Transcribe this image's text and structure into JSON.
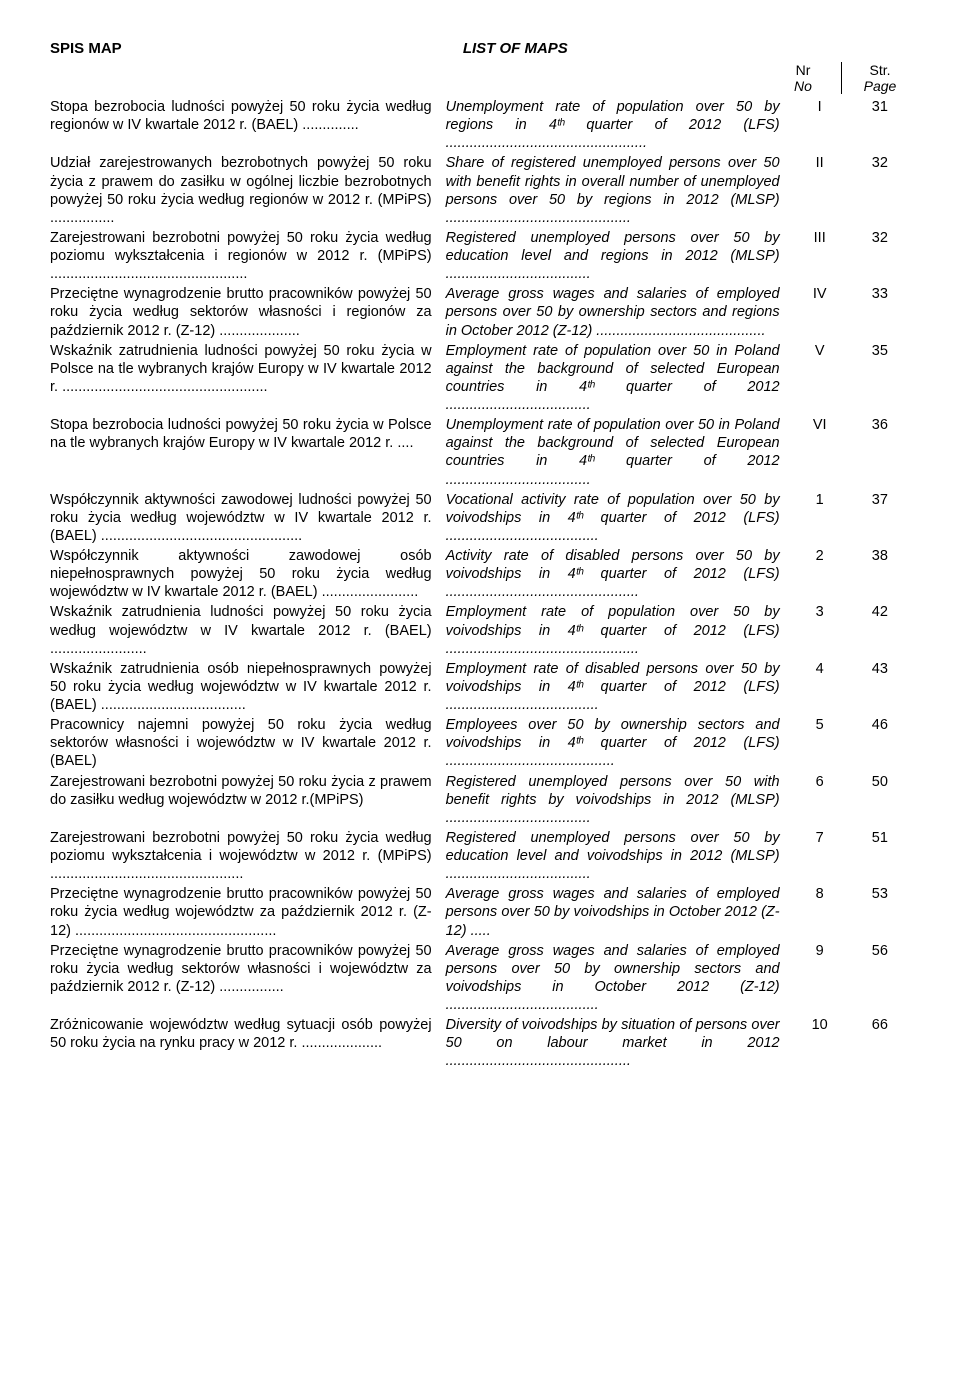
{
  "header": {
    "left": "SPIS MAP",
    "right": "LIST OF MAPS",
    "col_nr": "Nr",
    "col_no": "No",
    "col_str": "Str.",
    "col_page": "Page"
  },
  "entries": [
    {
      "pl": "Stopa bezrobocia ludności powyżej 50 roku życia według regionów w IV kwartale 2012 r. (BAEL) ..............",
      "en": "Unemployment rate of population over 50 by regions in 4ᵗʰ quarter of 2012 (LFS) ..................................................",
      "nr": "I",
      "page": "31"
    },
    {
      "pl": "Udział zarejestrowanych bezrobotnych powyżej 50 roku życia z prawem do zasiłku w ogólnej liczbie bezrobotnych powyżej 50 roku życia według regionów w 2012 r. (MPiPS) ................",
      "en": "Share of registered unemployed persons over 50 with benefit rights in overall number of unemployed persons over 50 by regions in 2012 (MLSP) ..............................................",
      "nr": "II",
      "page": "32"
    },
    {
      "pl": "Zarejestrowani bezrobotni powyżej 50 roku życia według poziomu wykształcenia i regionów w 2012 r. (MPiPS) .................................................",
      "en": "Registered unemployed persons over 50 by education level and regions in 2012 (MLSP) ....................................",
      "nr": "III",
      "page": "32"
    },
    {
      "pl": "Przeciętne wynagrodzenie brutto pracowników powyżej 50 roku życia według sektorów własności i regionów za październik 2012 r. (Z-12) ....................",
      "en": "Average gross wages and salaries of employed persons over 50 by ownership sectors and regions in October 2012 (Z-12) ..........................................",
      "nr": "IV",
      "page": "33"
    },
    {
      "pl": "Wskaźnik zatrudnienia ludności powyżej 50 roku życia w Polsce na tle wybranych krajów Europy w IV kwartale 2012 r. ...................................................",
      "en": "Employment rate of population over 50 in Poland against the background of selected European countries in 4ᵗʰ quarter of 2012 ....................................",
      "nr": "V",
      "page": "35"
    },
    {
      "pl": "Stopa bezrobocia ludności powyżej 50 roku życia w Polsce na tle wybranych krajów Europy w IV kwartale 2012 r. ....",
      "en": "Unemployment rate of population over 50 in Poland against the background of selected European countries in 4ᵗʰ quarter of 2012 ....................................",
      "nr": "VI",
      "page": "36"
    },
    {
      "pl": "Współczynnik aktywności zawodowej ludności powyżej 50 roku życia według województw w IV kwartale 2012 r. (BAEL) ..................................................",
      "en": "Vocational activity rate of population over 50 by voivodships in 4ᵗʰ quarter of 2012 (LFS) ......................................",
      "nr": "1",
      "page": "37"
    },
    {
      "pl": "Współczynnik aktywności zawodowej osób niepełnosprawnych powyżej 50 roku życia według województw w IV kwartale 2012 r. (BAEL) ........................",
      "en": "Activity rate of disabled persons over 50 by voivodships in 4ᵗʰ quarter of 2012 (LFS) ................................................",
      "nr": "2",
      "page": "38"
    },
    {
      "pl": "Wskaźnik zatrudnienia ludności powyżej 50 roku życia według województw w IV kwartale 2012 r. (BAEL) ........................",
      "en": "Employment rate of population over 50 by voivodships in 4ᵗʰ quarter of 2012 (LFS) ................................................",
      "nr": "3",
      "page": "42"
    },
    {
      "pl": "Wskaźnik zatrudnienia osób niepełnosprawnych powyżej 50 roku życia według województw w IV kwartale 2012 r. (BAEL) ....................................",
      "en": "Employment rate of disabled persons over 50 by voivodships in 4ᵗʰ quarter of 2012 (LFS) ......................................",
      "nr": "4",
      "page": "43"
    },
    {
      "pl": "Pracownicy najemni powyżej 50 roku życia według sektorów własności i województw w IV kwartale 2012 r. (BAEL)",
      "en": "Employees over 50 by ownership sectors and voivodships in 4ᵗʰ quarter of 2012 (LFS) ..........................................",
      "nr": "5",
      "page": "46"
    },
    {
      "pl": "Zarejestrowani bezrobotni powyżej 50 roku życia z prawem do zasiłku według województw w 2012 r.(MPiPS)",
      "en": "Registered unemployed persons over 50 with benefit rights by voivodships in 2012 (MLSP) ....................................",
      "nr": "6",
      "page": "50"
    },
    {
      "pl": "Zarejestrowani bezrobotni powyżej 50 roku życia według poziomu wykształcenia i województw w 2012 r. (MPiPS) ................................................",
      "en": "Registered unemployed persons over 50 by education level and voivodships in 2012 (MLSP) ....................................",
      "nr": "7",
      "page": "51"
    },
    {
      "pl": "Przeciętne wynagrodzenie brutto pracowników powyżej 50 roku życia według województw za październik 2012 r. (Z-12) ..................................................",
      "en": "Average gross wages and salaries of employed persons over 50 by voivodships in October 2012 (Z-12) .....",
      "nr": "8",
      "page": "53"
    },
    {
      "pl": "Przeciętne wynagrodzenie brutto pracowników powyżej 50 roku życia według sektorów własności i województw za październik 2012 r. (Z-12) ................",
      "en": "Average gross wages and salaries of employed persons over 50 by ownership sectors and voivodships in October 2012 (Z-12) ......................................",
      "nr": "9",
      "page": "56"
    },
    {
      "pl": "Zróżnicowanie województw według sytuacji osób powyżej 50 roku życia na rynku pracy w 2012 r. ....................",
      "en": "Diversity of voivodships by situation of persons over 50 on labour market in 2012 ..............................................",
      "nr": "10",
      "page": "66"
    }
  ]
}
